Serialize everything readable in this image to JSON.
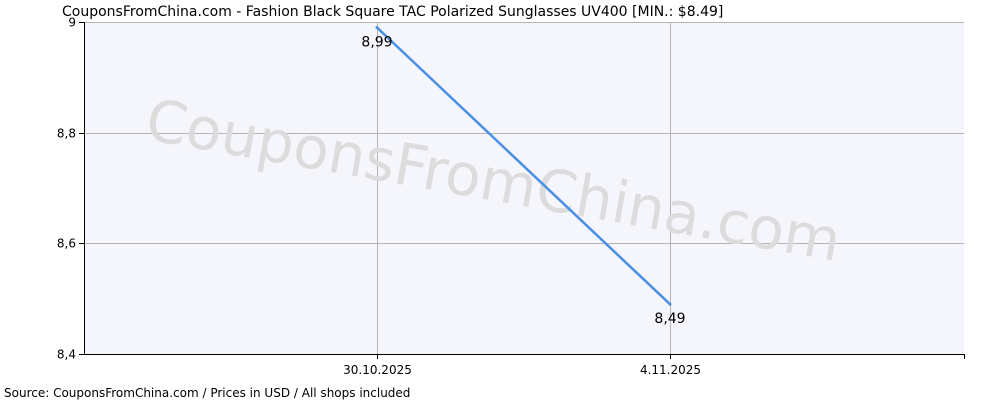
{
  "chart_data": {
    "type": "line",
    "title": "CouponsFromChina.com - Fashion Black Square TAC Polarized Sunglasses UV400 [MIN.: $8.49]",
    "x": [
      "30.10.2025",
      "4.11.2025"
    ],
    "series": [
      {
        "values": [
          8.99,
          8.49
        ],
        "data_labels": [
          "8,99",
          "8,49"
        ]
      }
    ],
    "y_ticks": [
      9,
      8.8,
      8.6,
      8.4
    ],
    "y_tick_labels": [
      "9",
      "8,8",
      "8,6",
      "8,4"
    ],
    "ylim": [
      8.4,
      9
    ],
    "grid": true,
    "line_color": "#4a8fe6",
    "plot_background": "#f5f5fc",
    "grid_color": "#b4b4b4"
  },
  "watermark": "CouponsFromChina.com",
  "footer": "Source:  CouponsFromChina.com / Prices in USD / All shops included"
}
